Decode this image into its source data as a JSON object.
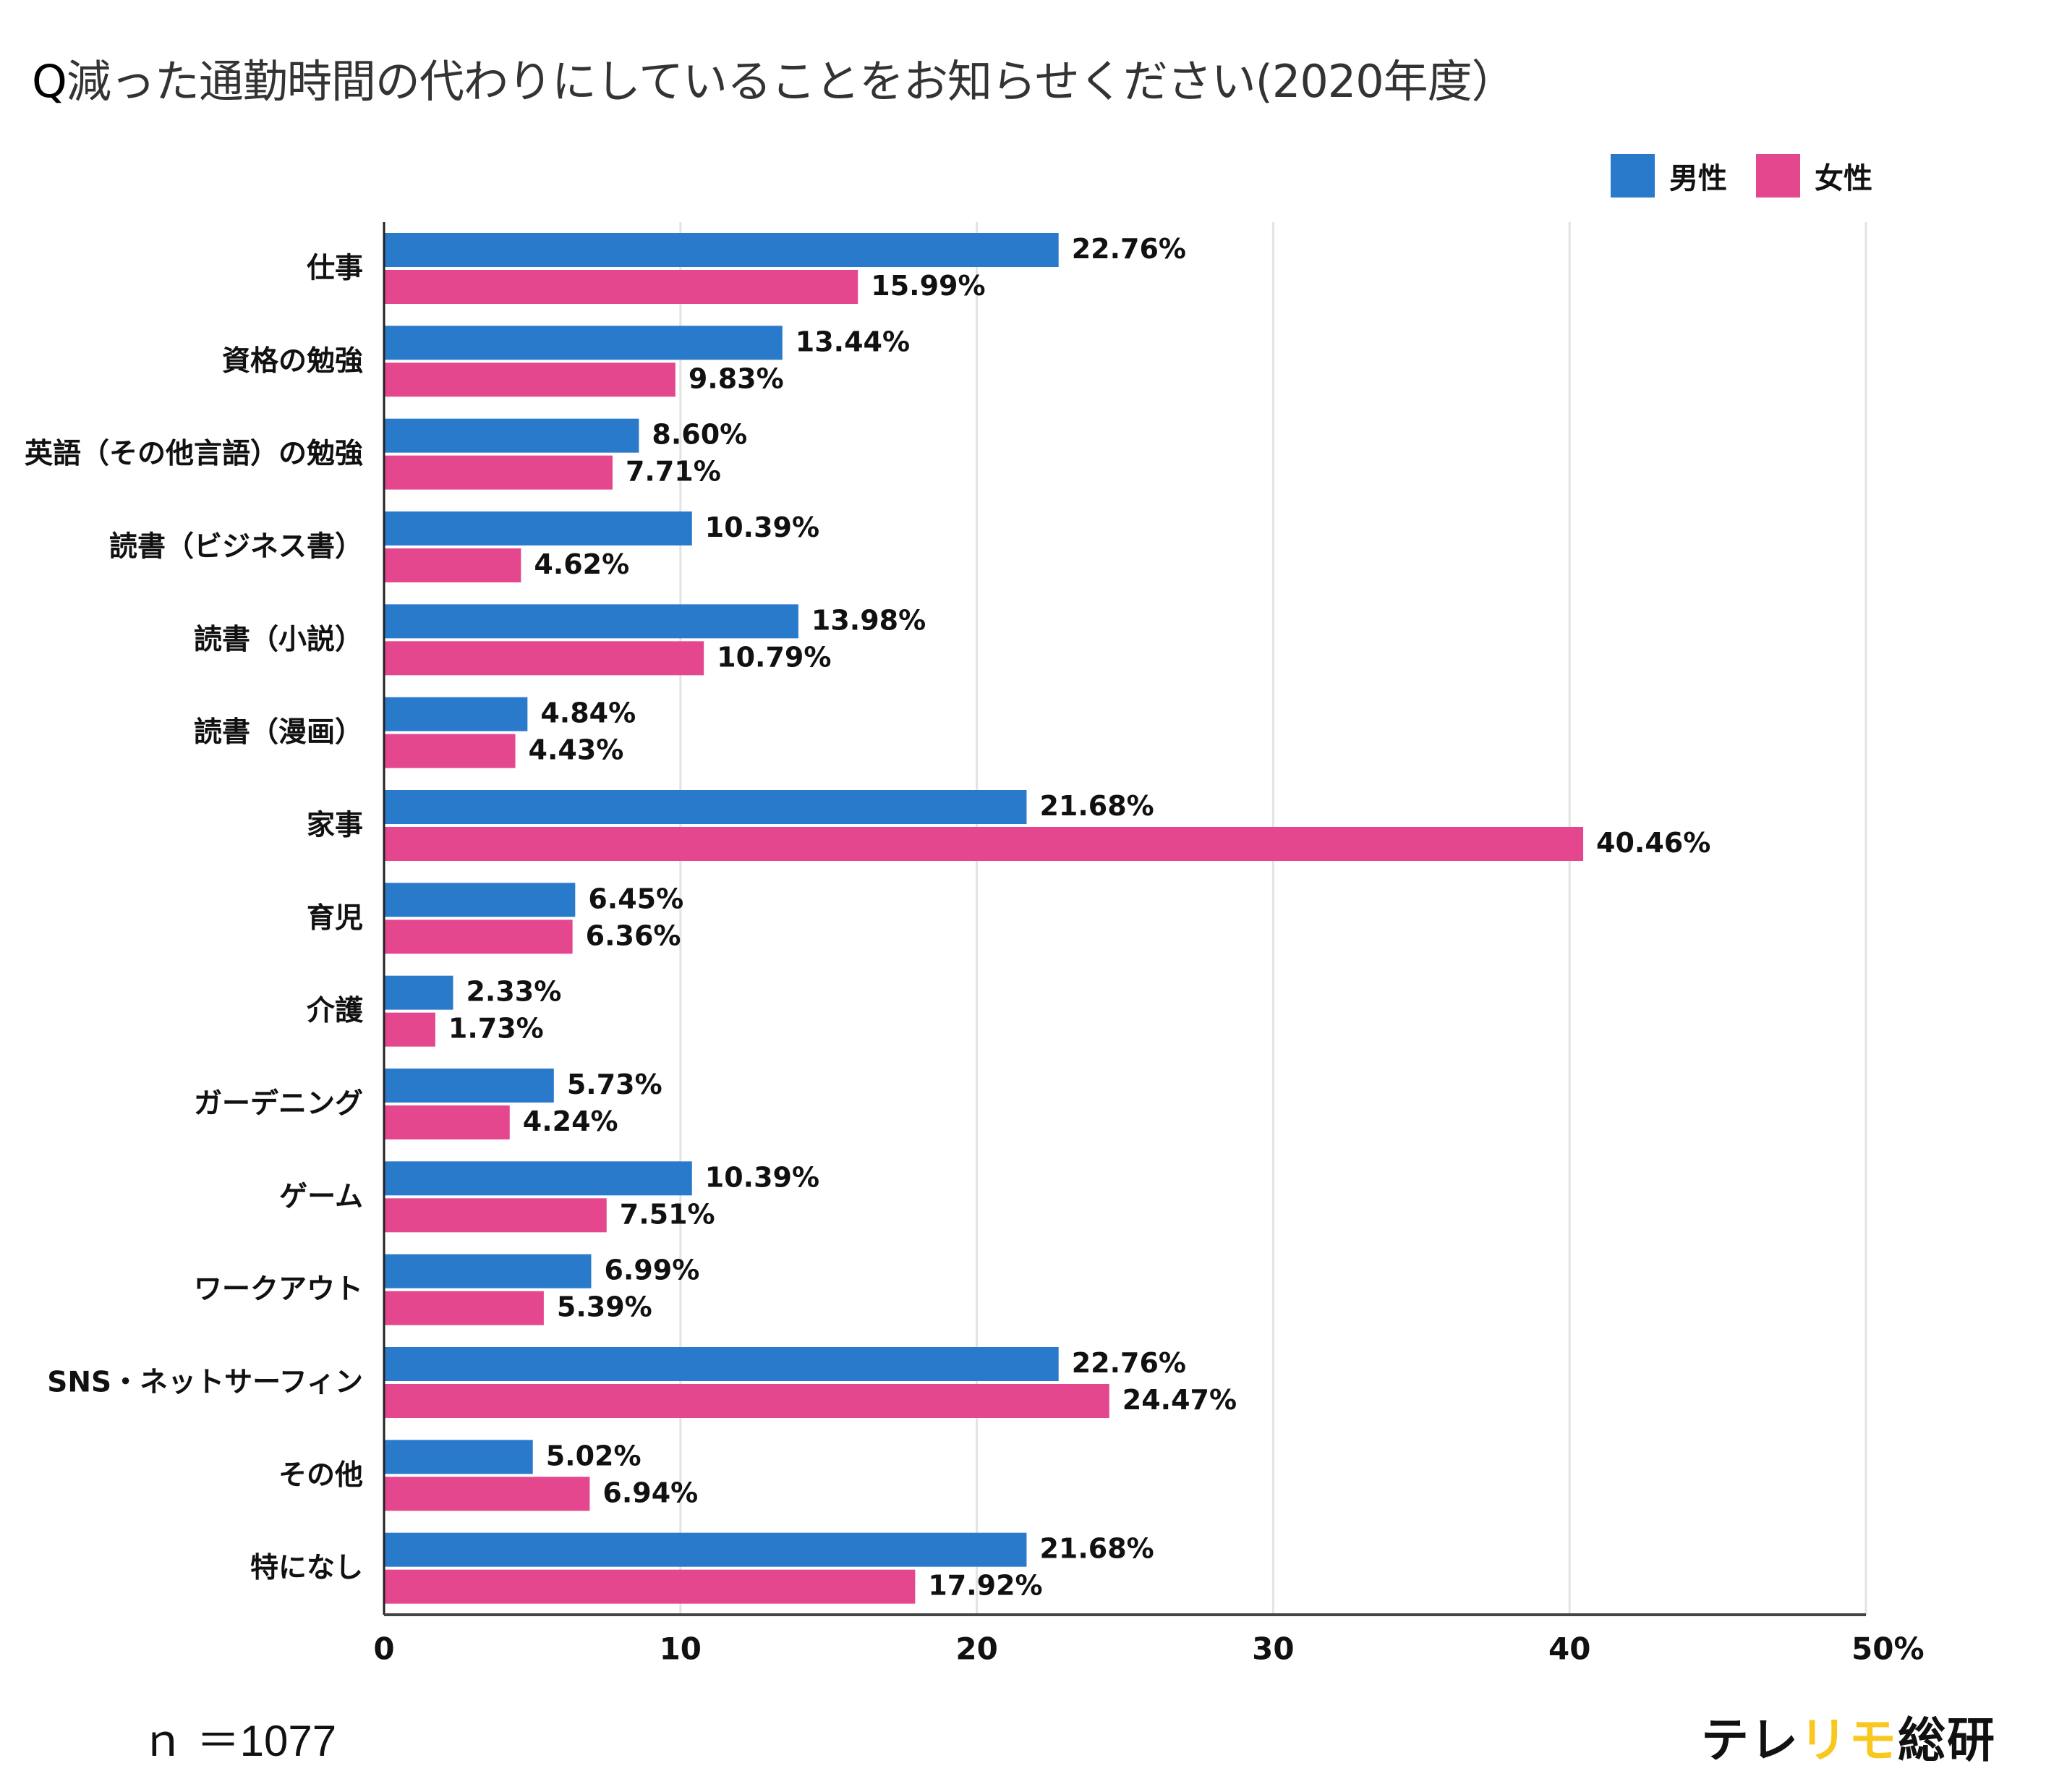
{
  "title": {
    "prefix": "Q",
    "text": "減った通勤時間の代わりにしていることをお知らせください(2020年度）"
  },
  "legend": [
    {
      "label": "男性",
      "color": "#2A7ACB"
    },
    {
      "label": "女性",
      "color": "#E4478D"
    }
  ],
  "footer": {
    "sample_size": "ｎ ＝1077",
    "brand_part1": "テレ",
    "brand_accent": "リモ",
    "brand_part2": "総研",
    "brand_accent_color": "#F9C81E"
  },
  "chart_data": {
    "type": "bar",
    "orientation": "horizontal",
    "title": "Q減った通勤時間の代わりにしていることをお知らせください(2020年度）",
    "xlabel": "",
    "ylabel": "",
    "xlim": [
      0,
      50
    ],
    "x_ticks": [
      0,
      10,
      20,
      30,
      40,
      50
    ],
    "x_tick_labels": [
      "0",
      "10",
      "20",
      "30",
      "40",
      "50%"
    ],
    "grid": true,
    "legend_position": "top-right",
    "categories": [
      "仕事",
      "資格の勉強",
      "英語（その他言語）の勉強",
      "読書（ビジネス書）",
      "読書（小説）",
      "読書（漫画）",
      "家事",
      "育児",
      "介護",
      "ガーデニング",
      "ゲーム",
      "ワークアウト",
      "SNS・ネットサーフィン",
      "その他",
      "特になし"
    ],
    "series": [
      {
        "name": "男性",
        "color": "#2A7ACB",
        "values": [
          22.76,
          13.44,
          8.6,
          10.39,
          13.98,
          4.84,
          21.68,
          6.45,
          2.33,
          5.73,
          10.39,
          6.99,
          22.76,
          5.02,
          21.68
        ],
        "value_labels": [
          "22.76%",
          "13.44%",
          "8.60%",
          "10.39%",
          "13.98%",
          "4.84%",
          "21.68%",
          "6.45%",
          "2.33%",
          "5.73%",
          "10.39%",
          "6.99%",
          "22.76%",
          "5.02%",
          "21.68%"
        ]
      },
      {
        "name": "女性",
        "color": "#E4478D",
        "values": [
          15.99,
          9.83,
          7.71,
          4.62,
          10.79,
          4.43,
          40.46,
          6.36,
          1.73,
          4.24,
          7.51,
          5.39,
          24.47,
          6.94,
          17.92
        ],
        "value_labels": [
          "15.99%",
          "9.83%",
          "7.71%",
          "4.62%",
          "10.79%",
          "4.43%",
          "40.46%",
          "6.36%",
          "1.73%",
          "4.24%",
          "7.51%",
          "5.39%",
          "24.47%",
          "6.94%",
          "17.92%"
        ]
      }
    ],
    "sample_size": "ｎ ＝1077"
  }
}
